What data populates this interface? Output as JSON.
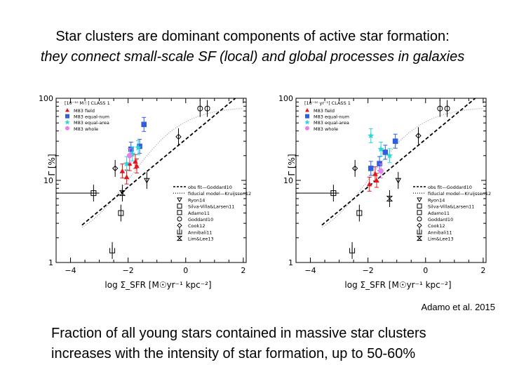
{
  "title": {
    "line1": "Star clusters are dominant components of active star formation:",
    "line2": "they connect small-scale SF (local) and global processes in galaxies"
  },
  "citation": "Adamo et al. 2015",
  "caption": {
    "line1": "Fraction of all young stars contained in massive star clusters",
    "line2": "increases with the intensity of star formation, up to 50-60%"
  },
  "colors": {
    "red": "#e0161b",
    "blue": "#2f5fe0",
    "cyan": "#28d7d7",
    "magenta": "#ea7fea",
    "black": "#000000",
    "gray": "#888888"
  },
  "chart_data": [
    {
      "type": "scatter",
      "title": "",
      "xlabel": "log Σ_SFR [M☉yr⁻¹ kpc⁻²]",
      "ylabel": "Γ [%]",
      "x_ticks": [
        "−4",
        "−2",
        "0",
        "2"
      ],
      "y_ticks": [
        "1",
        "10",
        "100"
      ],
      "xlim": [
        -4.5,
        2.1
      ],
      "ylim": [
        1,
        100
      ],
      "log_y": true,
      "inset_label": "[10⁻¹⁰ M☉] CLASS 1",
      "legend_top": [
        "M83 field",
        "M83 equal-num",
        "M83 equal-area",
        "M83 whole"
      ],
      "legend_bottom": [
        "obs fit—Goddard10",
        "fiducial model—Kruijssen12",
        "Ryon14",
        "Silva-Villa&Larsen11",
        "Adamo11",
        "Goddard10",
        "Cook12",
        "Annibali11",
        "Lim&Lee13"
      ],
      "series": [
        {
          "name": "M83 field",
          "color": "red",
          "marker": "triangle",
          "x": [
            -2.2,
            -2.05,
            -1.95,
            -1.75,
            -1.7
          ],
          "y": [
            13,
            11,
            16,
            17,
            15
          ]
        },
        {
          "name": "M83 equal-num",
          "color": "blue",
          "marker": "square",
          "x": [
            -1.9,
            -1.6,
            -1.45
          ],
          "y": [
            24,
            26,
            48
          ]
        },
        {
          "name": "M83 equal-area",
          "color": "cyan",
          "marker": "star",
          "x": [
            -2.05,
            -1.85,
            -1.65
          ],
          "y": [
            16,
            21,
            25
          ]
        },
        {
          "name": "M83 whole",
          "color": "magenta",
          "marker": "circle",
          "x": [
            -1.95
          ],
          "y": [
            20
          ]
        }
      ],
      "literature": [
        {
          "marker": "triangle-down",
          "x": [
            -1.35
          ],
          "y": [
            10
          ]
        },
        {
          "marker": "square-open",
          "x": [
            -3.2,
            -2.25
          ],
          "y": [
            7,
            4
          ]
        },
        {
          "marker": "circle-open",
          "x": [
            0.5,
            0.75
          ],
          "y": [
            75,
            75
          ]
        },
        {
          "marker": "diamond-open",
          "x": [
            -0.25,
            -2.45
          ],
          "y": [
            34,
            14
          ]
        },
        {
          "marker": "bowtie",
          "x": [
            -2.2
          ],
          "y": [
            7
          ]
        },
        {
          "marker": "upper-limit",
          "x": [
            -2.55
          ],
          "y": [
            1.4
          ]
        }
      ]
    },
    {
      "type": "scatter",
      "title": "",
      "xlabel": "log Σ_SFR [M☉yr⁻¹ kpc⁻²]",
      "ylabel": "Γ [%]",
      "x_ticks": [
        "−4",
        "−2",
        "0",
        "2"
      ],
      "y_ticks": [
        "1",
        "10",
        "100"
      ],
      "xlim": [
        -4.5,
        2.1
      ],
      "ylim": [
        1,
        100
      ],
      "log_y": true,
      "inset_label": "[10⁻¹⁰ yr⁻¹] CLASS 1",
      "legend_top": [
        "M83 field",
        "M83 equal-num",
        "M83 equal-area",
        "M83 whole"
      ],
      "legend_bottom": [
        "obs fit—Goddard10",
        "fiducial model—Kruijssen12",
        "Ryon14",
        "Silva-Villa&Larsen11",
        "Adamo11",
        "Goddard10",
        "Cook12",
        "Annibali11",
        "Lim&Lee13"
      ],
      "series": [
        {
          "name": "M83 field",
          "color": "red",
          "marker": "triangle",
          "x": [
            -1.95,
            -1.75,
            -1.7
          ],
          "y": [
            9,
            12,
            10
          ]
        },
        {
          "name": "M83 equal-num",
          "color": "blue",
          "marker": "square",
          "x": [
            -1.9,
            -1.6,
            -1.4,
            -1.05
          ],
          "y": [
            14,
            16,
            22,
            30
          ]
        },
        {
          "name": "M83 equal-area",
          "color": "cyan",
          "marker": "star",
          "x": [
            -1.9,
            -1.55,
            -1.25
          ],
          "y": [
            35,
            24,
            20
          ]
        },
        {
          "name": "M83 whole",
          "color": "magenta",
          "marker": "circle",
          "x": [
            -1.55
          ],
          "y": [
            13
          ]
        }
      ],
      "literature": [
        {
          "marker": "triangle-down",
          "x": [
            -0.95
          ],
          "y": [
            10
          ]
        },
        {
          "marker": "square-open",
          "x": [
            -3.2,
            -2.3
          ],
          "y": [
            7,
            4
          ]
        },
        {
          "marker": "circle-open",
          "x": [
            0.5,
            0.75
          ],
          "y": [
            75,
            75
          ]
        },
        {
          "marker": "diamond-open",
          "x": [
            -0.25,
            -2.45
          ],
          "y": [
            35,
            14
          ]
        },
        {
          "marker": "bowtie",
          "x": [
            -1.25
          ],
          "y": [
            6
          ]
        },
        {
          "marker": "upper-limit",
          "x": [
            -2.55
          ],
          "y": [
            1.4
          ]
        }
      ]
    }
  ]
}
